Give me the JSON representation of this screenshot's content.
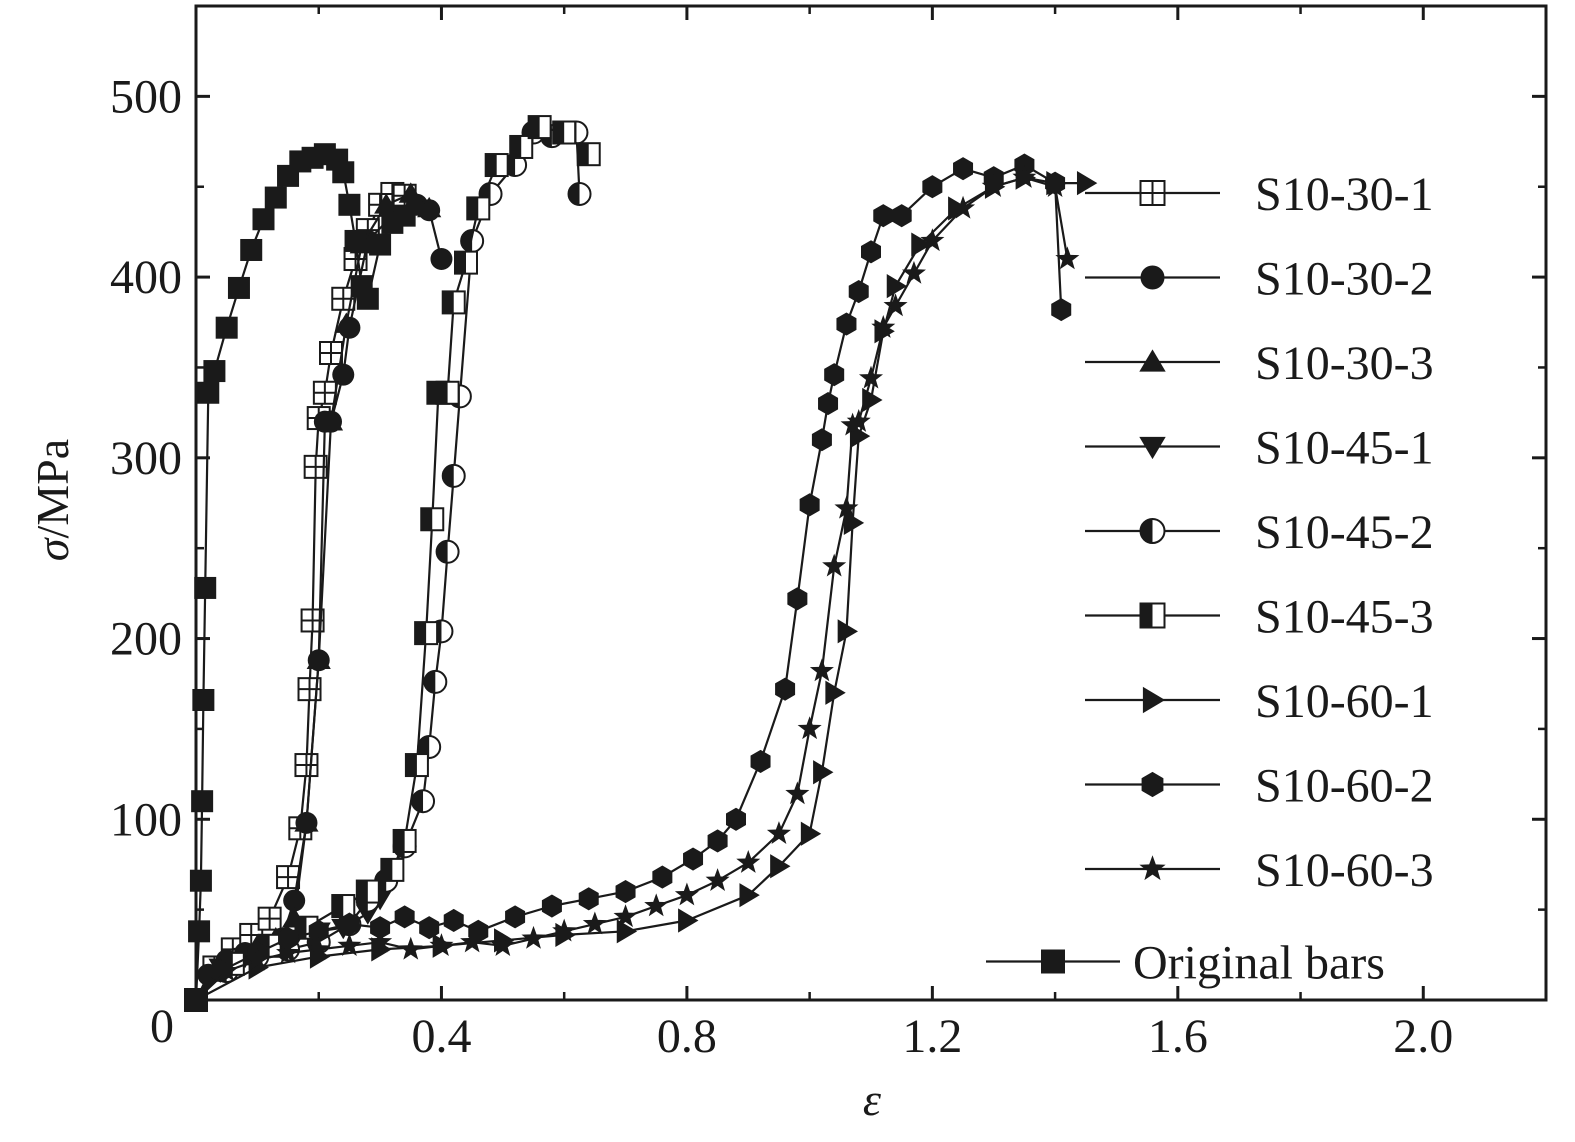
{
  "chart_data": {
    "type": "line",
    "title": "",
    "xlabel": "ε",
    "ylabel_symbol": "σ",
    "ylabel_unit": "/MPa",
    "xlim": [
      0,
      2.2
    ],
    "ylim": [
      0,
      550
    ],
    "xticks": [
      0.4,
      0.8,
      1.2,
      1.6,
      2.0
    ],
    "xtick_labels": [
      "0.4",
      "0.8",
      "1.2",
      "1.6",
      "2.0"
    ],
    "yticks": [
      100,
      200,
      300,
      400,
      500
    ],
    "ytick_labels": [
      "100",
      "200",
      "300",
      "400",
      "500"
    ],
    "origin_label": "0",
    "grid": false,
    "legend_position": "right",
    "series": [
      {
        "name": "S10-30-1",
        "marker": "square-cross",
        "x": [
          0,
          0.03,
          0.06,
          0.09,
          0.12,
          0.15,
          0.17,
          0.18,
          0.185,
          0.19,
          0.195,
          0.2,
          0.21,
          0.22,
          0.24,
          0.26,
          0.28,
          0.3,
          0.32,
          0.34
        ],
        "y": [
          0,
          18,
          28,
          36,
          45,
          68,
          95,
          130,
          172,
          210,
          295,
          322,
          336,
          358,
          388,
          410,
          426,
          440,
          446,
          445
        ]
      },
      {
        "name": "S10-30-2",
        "marker": "circle",
        "x": [
          0,
          0.02,
          0.05,
          0.08,
          0.11,
          0.14,
          0.16,
          0.18,
          0.2,
          0.21,
          0.22,
          0.24,
          0.25,
          0.28,
          0.32,
          0.36,
          0.38,
          0.4
        ],
        "y": [
          0,
          14,
          22,
          26,
          30,
          34,
          55,
          98,
          188,
          320,
          320,
          346,
          372,
          420,
          434,
          440,
          437,
          410
        ]
      },
      {
        "name": "S10-30-3",
        "marker": "triangle-up",
        "x": [
          0,
          0.03,
          0.07,
          0.1,
          0.13,
          0.16,
          0.18,
          0.2,
          0.22,
          0.245,
          0.27,
          0.31,
          0.35,
          0.38
        ],
        "y": [
          0,
          15,
          24,
          30,
          34,
          45,
          98,
          188,
          320,
          374,
          418,
          440,
          446,
          438
        ]
      },
      {
        "name": "S10-45-1",
        "marker": "triangle-down",
        "x": [
          0,
          0.04,
          0.08,
          0.12,
          0.16,
          0.2,
          0.24,
          0.28,
          0.3
        ],
        "y": [
          0,
          18,
          24,
          30,
          34,
          38,
          40,
          48,
          56
        ]
      },
      {
        "name": "S10-45-2",
        "marker": "circle-half",
        "x": [
          0,
          0.05,
          0.1,
          0.15,
          0.2,
          0.25,
          0.28,
          0.31,
          0.34,
          0.37,
          0.38,
          0.39,
          0.4,
          0.41,
          0.42,
          0.43,
          0.45,
          0.48,
          0.52,
          0.55,
          0.58,
          0.62,
          0.625
        ],
        "y": [
          0,
          16,
          24,
          28,
          32,
          42,
          55,
          66,
          85,
          110,
          140,
          176,
          204,
          248,
          290,
          334,
          420,
          446,
          462,
          480,
          478,
          480,
          446
        ]
      },
      {
        "name": "S10-45-3",
        "marker": "square-half",
        "x": [
          0,
          0.06,
          0.12,
          0.18,
          0.24,
          0.28,
          0.32,
          0.34,
          0.36,
          0.375,
          0.385,
          0.395,
          0.41,
          0.42,
          0.44,
          0.46,
          0.49,
          0.53,
          0.56,
          0.6,
          0.64
        ],
        "y": [
          0,
          20,
          30,
          40,
          52,
          60,
          72,
          88,
          130,
          203,
          266,
          336,
          336,
          386,
          408,
          438,
          462,
          472,
          483,
          480,
          468
        ]
      },
      {
        "name": "S10-60-1",
        "marker": "triangle-right",
        "x": [
          0,
          0.1,
          0.2,
          0.3,
          0.4,
          0.5,
          0.6,
          0.7,
          0.8,
          0.9,
          0.95,
          1.0,
          1.02,
          1.04,
          1.06,
          1.07,
          1.08,
          1.1,
          1.12,
          1.14,
          1.18,
          1.24,
          1.3,
          1.35,
          1.4,
          1.45
        ],
        "y": [
          0,
          18,
          24,
          28,
          30,
          33,
          36,
          38,
          44,
          58,
          74,
          92,
          126,
          170,
          204,
          264,
          312,
          332,
          370,
          395,
          418,
          438,
          450,
          455,
          452,
          452
        ]
      },
      {
        "name": "S10-60-2",
        "marker": "hexagon",
        "x": [
          0,
          0.04,
          0.1,
          0.15,
          0.2,
          0.25,
          0.3,
          0.34,
          0.38,
          0.42,
          0.46,
          0.52,
          0.58,
          0.64,
          0.7,
          0.76,
          0.81,
          0.85,
          0.88,
          0.92,
          0.96,
          0.98,
          1.0,
          1.02,
          1.03,
          1.04,
          1.06,
          1.08,
          1.1,
          1.12,
          1.15,
          1.2,
          1.25,
          1.3,
          1.35,
          1.4,
          1.41
        ],
        "y": [
          0,
          16,
          26,
          34,
          38,
          42,
          40,
          46,
          40,
          44,
          38,
          46,
          52,
          56,
          60,
          68,
          78,
          88,
          100,
          132,
          172,
          222,
          274,
          310,
          330,
          346,
          374,
          392,
          414,
          434,
          434,
          450,
          460,
          455,
          462,
          452,
          382
        ]
      },
      {
        "name": "S10-60-3",
        "marker": "star",
        "x": [
          0,
          0.05,
          0.1,
          0.15,
          0.2,
          0.25,
          0.3,
          0.35,
          0.4,
          0.45,
          0.5,
          0.55,
          0.6,
          0.65,
          0.7,
          0.75,
          0.8,
          0.85,
          0.9,
          0.95,
          0.98,
          1.0,
          1.02,
          1.04,
          1.06,
          1.07,
          1.08,
          1.1,
          1.12,
          1.14,
          1.17,
          1.2,
          1.25,
          1.3,
          1.35,
          1.4,
          1.42
        ],
        "y": [
          0,
          16,
          22,
          26,
          28,
          30,
          32,
          28,
          30,
          32,
          30,
          34,
          38,
          42,
          46,
          52,
          58,
          66,
          76,
          92,
          114,
          150,
          182,
          240,
          272,
          318,
          320,
          344,
          372,
          384,
          402,
          420,
          438,
          450,
          455,
          450,
          410
        ]
      },
      {
        "name": "Original bars",
        "marker": "square",
        "x": [
          0,
          0.005,
          0.008,
          0.01,
          0.012,
          0.015,
          0.02,
          0.03,
          0.05,
          0.07,
          0.09,
          0.11,
          0.13,
          0.15,
          0.17,
          0.19,
          0.21,
          0.23,
          0.24,
          0.25,
          0.26,
          0.27,
          0.28,
          0.3,
          0.32,
          0.34
        ],
        "y": [
          0,
          38,
          66,
          110,
          166,
          228,
          336,
          348,
          372,
          394,
          415,
          432,
          444,
          456,
          464,
          466,
          468,
          465,
          458,
          440,
          420,
          395,
          388,
          418,
          430,
          434
        ]
      }
    ]
  }
}
